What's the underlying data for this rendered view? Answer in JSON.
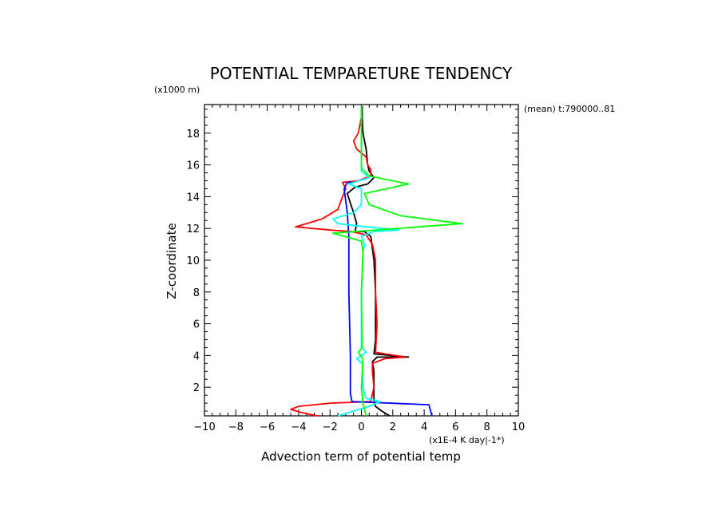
{
  "chart_data": {
    "type": "line",
    "title": "POTENTIAL TEMPARETURE TENDENCY",
    "xlabel": "Advection term of potential temp",
    "ylabel": "Z-coordinate",
    "x_unit": "(x1E-4 K day|-1*)",
    "y_unit": "(x1000 m)",
    "annotation": "(mean) t:790000..81",
    "xlim": [
      -10,
      10
    ],
    "ylim": [
      0.2,
      19.8
    ],
    "xticks": [
      -10,
      -8,
      -6,
      -4,
      -2,
      0,
      2,
      4,
      6,
      8,
      10
    ],
    "yticks": [
      2,
      4,
      6,
      8,
      10,
      12,
      14,
      16,
      18
    ],
    "grid": false,
    "legend": "none",
    "series": [
      {
        "color": "#000000",
        "points": [
          [
            1.8,
            0.2
          ],
          [
            1.3,
            0.5
          ],
          [
            0.9,
            0.8
          ],
          [
            0.8,
            1.1
          ],
          [
            0.8,
            2
          ],
          [
            0.8,
            3.0
          ],
          [
            0.7,
            3.6
          ],
          [
            1.0,
            3.9
          ],
          [
            3.0,
            3.9
          ],
          [
            0.8,
            4.1
          ],
          [
            0.9,
            5
          ],
          [
            0.9,
            8
          ],
          [
            0.8,
            10
          ],
          [
            0.6,
            11.5
          ],
          [
            0.2,
            11.8
          ],
          [
            -0.4,
            11.8
          ],
          [
            -0.3,
            12.3
          ],
          [
            -0.5,
            13
          ],
          [
            -0.7,
            13.6
          ],
          [
            -0.9,
            14.2
          ],
          [
            -0.4,
            14.6
          ],
          [
            0.4,
            14.8
          ],
          [
            0.8,
            15.2
          ],
          [
            0.5,
            15.6
          ],
          [
            0.4,
            16
          ],
          [
            0.3,
            17
          ],
          [
            0.1,
            18
          ],
          [
            0.05,
            19
          ],
          [
            0.05,
            19.7
          ]
        ]
      },
      {
        "color": "#ff0000",
        "points": [
          [
            -2.8,
            0.2
          ],
          [
            -3.8,
            0.4
          ],
          [
            -4.5,
            0.6
          ],
          [
            -4,
            0.8
          ],
          [
            -2,
            1.0
          ],
          [
            0.6,
            1.1
          ],
          [
            0.8,
            2
          ],
          [
            0.7,
            3.0
          ],
          [
            0.7,
            3.5
          ],
          [
            1.5,
            3.8
          ],
          [
            2.8,
            3.9
          ],
          [
            0.9,
            4.2
          ],
          [
            1.0,
            6
          ],
          [
            0.9,
            8
          ],
          [
            0.9,
            10
          ],
          [
            0.7,
            11
          ],
          [
            0.3,
            11.6
          ],
          [
            -0.6,
            11.8
          ],
          [
            -2,
            11.9
          ],
          [
            -4.2,
            12.1
          ],
          [
            -2.5,
            12.6
          ],
          [
            -1.5,
            13.2
          ],
          [
            -1.2,
            14
          ],
          [
            -1.0,
            14.5
          ],
          [
            -1.2,
            14.9
          ],
          [
            -0.2,
            15.0
          ],
          [
            0.6,
            15.3
          ],
          [
            0.6,
            15.7
          ],
          [
            0.4,
            16
          ],
          [
            0.3,
            16.5
          ],
          [
            -0.3,
            17
          ],
          [
            -0.5,
            17.5
          ],
          [
            -0.2,
            18
          ],
          [
            0,
            19
          ],
          [
            0,
            19.7
          ]
        ]
      },
      {
        "color": "#0000ff",
        "points": [
          [
            4.5,
            0.2
          ],
          [
            4.3,
            0.9
          ],
          [
            -0.6,
            1.1
          ],
          [
            -0.7,
            1.6
          ],
          [
            -0.7,
            4
          ],
          [
            -0.8,
            8
          ],
          [
            -0.8,
            11.5
          ],
          [
            -0.9,
            13
          ],
          [
            -1.1,
            14.5
          ],
          [
            -0.9,
            14.9
          ],
          [
            -0.6,
            14.9
          ]
        ]
      },
      {
        "color": "#00ffff",
        "points": [
          [
            -1.5,
            0.2
          ],
          [
            -0.5,
            0.5
          ],
          [
            0.5,
            0.8
          ],
          [
            1.2,
            1.1
          ],
          [
            0.3,
            1.3
          ],
          [
            0.1,
            2
          ],
          [
            0.05,
            3.5
          ],
          [
            -0.3,
            3.8
          ],
          [
            0.3,
            4.2
          ],
          [
            0,
            4.5
          ],
          [
            0,
            8
          ],
          [
            0.1,
            10.5
          ],
          [
            0.2,
            11
          ],
          [
            0,
            11.5
          ],
          [
            0.8,
            11.8
          ],
          [
            2.4,
            11.9
          ],
          [
            0.3,
            12.1
          ],
          [
            -1.5,
            12.3
          ],
          [
            -1.8,
            12.6
          ],
          [
            -0.5,
            13
          ],
          [
            0,
            13.5
          ],
          [
            0,
            14.5
          ],
          [
            -0.8,
            14.8
          ],
          [
            0.5,
            15.2
          ],
          [
            0,
            15.6
          ],
          [
            0,
            19.7
          ]
        ]
      },
      {
        "color": "#00ff00",
        "points": [
          [
            0.3,
            0.2
          ],
          [
            0.1,
            1
          ],
          [
            0,
            2
          ],
          [
            0.1,
            3.8
          ],
          [
            -0.2,
            4.2
          ],
          [
            0.05,
            4.5
          ],
          [
            0,
            8
          ],
          [
            0.1,
            10.5
          ],
          [
            0,
            11.2
          ],
          [
            -1.8,
            11.7
          ],
          [
            6.4,
            12.3
          ],
          [
            2.5,
            12.8
          ],
          [
            0.5,
            13.5
          ],
          [
            0.2,
            14.2
          ],
          [
            3.0,
            14.8
          ],
          [
            0.5,
            15.3
          ],
          [
            0,
            15.8
          ],
          [
            0,
            17
          ],
          [
            0,
            19.7
          ]
        ]
      }
    ]
  }
}
